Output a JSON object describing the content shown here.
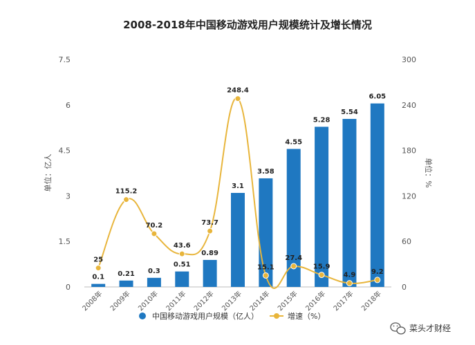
{
  "chart_data": {
    "type": "bar",
    "title": "2008-2018年中国移动游戏用户规模统计及增长情况",
    "categories": [
      "2008年",
      "2009年",
      "2010年",
      "2011年",
      "2012年",
      "2013年",
      "2014年",
      "2015年",
      "2016年",
      "2017年",
      "2018年"
    ],
    "series": [
      {
        "name": "中国移动游戏用户规模（亿人）",
        "type": "bar",
        "axis": "left",
        "color": "#1f78c1",
        "values": [
          0.1,
          0.21,
          0.3,
          0.51,
          0.89,
          3.1,
          3.58,
          4.55,
          5.28,
          5.54,
          6.05
        ],
        "labels": [
          "0.1",
          "0.21",
          "0.3",
          "0.51",
          "0.89",
          "3.1",
          "3.58",
          "4.55",
          "5.28",
          "5.54",
          "6.05"
        ]
      },
      {
        "name": "增速（%）",
        "type": "line",
        "axis": "right",
        "color": "#e8b53b",
        "values": [
          25,
          115.2,
          70.2,
          43.6,
          73.7,
          248.4,
          15.1,
          27.4,
          15.9,
          4.9,
          9.2
        ],
        "labels": [
          "25",
          "115.2",
          "70.2",
          "43.6",
          "73.7",
          "248.4",
          "15.1",
          "27.4",
          "15.9",
          "4.9",
          "9.2"
        ]
      }
    ],
    "ylabel": "单位：亿人",
    "y2label": "单位：%",
    "ylim": [
      0,
      7.5
    ],
    "y_ticks": [
      "0",
      "1.5",
      "3",
      "4.5",
      "6",
      "7.5"
    ],
    "y2lim": [
      0,
      300
    ],
    "y2_ticks": [
      "0",
      "60",
      "120",
      "180",
      "240",
      "300"
    ],
    "legend_position": "bottom",
    "grid": false
  },
  "watermark": {
    "text": "菜头才财经",
    "icon": "wechat-icon"
  }
}
